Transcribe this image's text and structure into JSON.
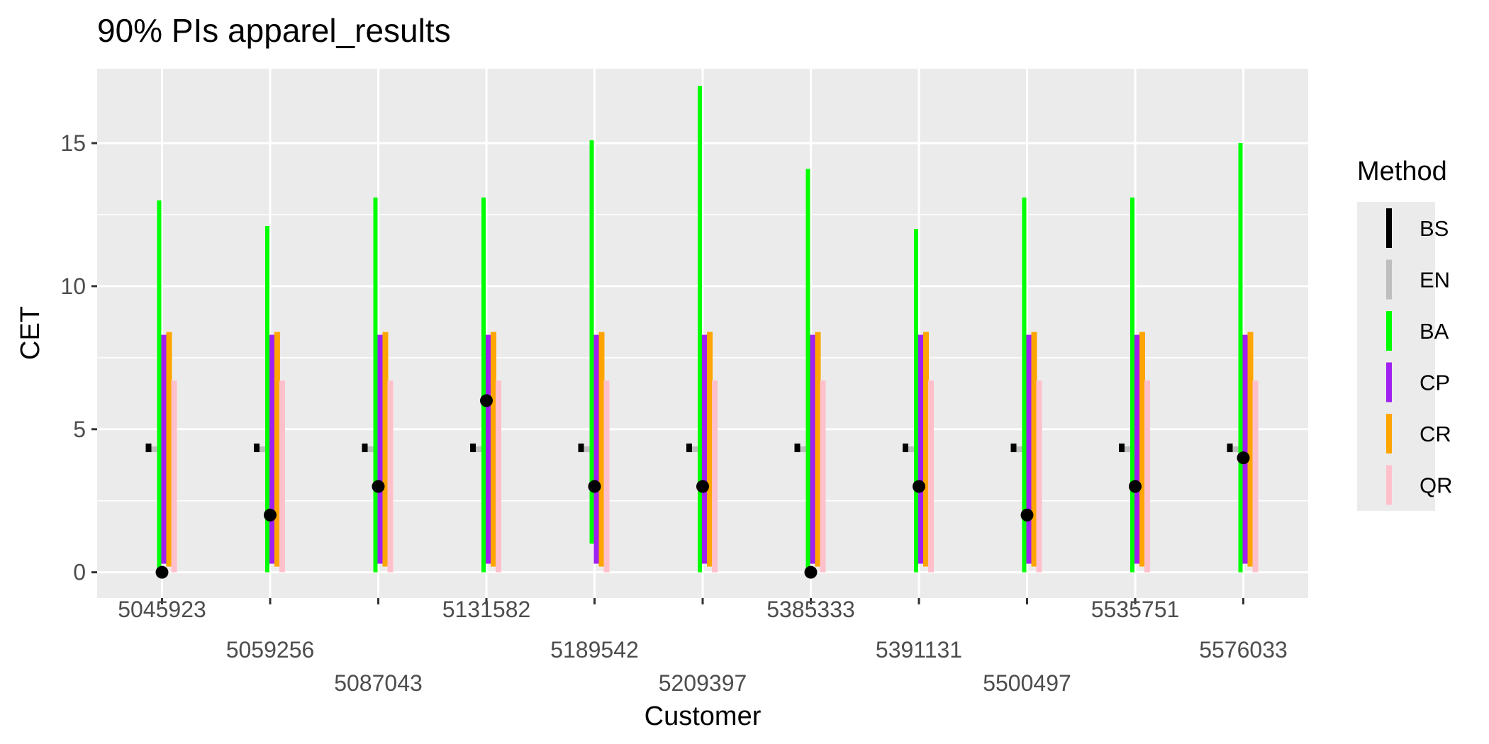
{
  "chart_data": {
    "type": "interval",
    "title": "90% PIs apparel_results",
    "xlabel": "Customer",
    "ylabel": "CET",
    "ylim": [
      -0.9,
      17.6
    ],
    "yticks": [
      0,
      5,
      10,
      15
    ],
    "grid": true,
    "legend_position": "right",
    "legend_title": "Method",
    "categories": [
      "5045923",
      "5059256",
      "5087043",
      "5131582",
      "5189542",
      "5209397",
      "5385333",
      "5391131",
      "5500497",
      "5535751",
      "5576033"
    ],
    "series": [
      {
        "name": "BS",
        "color": "#000000",
        "lower": [
          4.2,
          4.2,
          4.2,
          4.2,
          4.2,
          4.2,
          4.2,
          4.2,
          4.2,
          4.2,
          4.2
        ],
        "upper": [
          4.5,
          4.5,
          4.5,
          4.5,
          4.5,
          4.5,
          4.5,
          4.5,
          4.5,
          4.5,
          4.5
        ]
      },
      {
        "name": "EN",
        "color": "#bebebe",
        "lower": [
          4.2,
          4.2,
          4.2,
          4.2,
          4.2,
          4.2,
          4.2,
          4.2,
          4.2,
          4.2,
          4.2
        ],
        "upper": [
          4.4,
          4.4,
          4.4,
          4.4,
          4.4,
          4.4,
          4.4,
          4.4,
          4.4,
          4.4,
          4.4
        ]
      },
      {
        "name": "BA",
        "color": "#00ff00",
        "lower": [
          0,
          0,
          0,
          0,
          1,
          0,
          0,
          0,
          0,
          0,
          0
        ],
        "upper": [
          13,
          12.1,
          13.1,
          13.1,
          15.1,
          17,
          14.1,
          12,
          13.1,
          13.1,
          15
        ]
      },
      {
        "name": "CP",
        "color": "#a020f0",
        "lower": [
          0.3,
          0.3,
          0.3,
          0.3,
          0.3,
          0.3,
          0.3,
          0.3,
          0.3,
          0.3,
          0.3
        ],
        "upper": [
          8.3,
          8.3,
          8.3,
          8.3,
          8.3,
          8.3,
          8.3,
          8.3,
          8.3,
          8.3,
          8.3
        ]
      },
      {
        "name": "CR",
        "color": "#ffa500",
        "lower": [
          0.2,
          0.2,
          0.2,
          0.2,
          0.2,
          0.2,
          0.2,
          0.2,
          0.2,
          0.2,
          0.2
        ],
        "upper": [
          8.4,
          8.4,
          8.4,
          8.4,
          8.4,
          8.4,
          8.4,
          8.4,
          8.4,
          8.4,
          8.4
        ]
      },
      {
        "name": "QR",
        "color": "#ffc0cb",
        "lower": [
          0,
          0,
          0,
          0,
          0,
          0,
          0,
          0,
          0,
          0,
          0
        ],
        "upper": [
          6.7,
          6.7,
          6.7,
          6.7,
          6.7,
          6.7,
          6.7,
          6.7,
          6.7,
          6.7,
          6.7
        ]
      }
    ],
    "observed": [
      0,
      2,
      3,
      6,
      3,
      3,
      0,
      3,
      2,
      3,
      4
    ]
  }
}
